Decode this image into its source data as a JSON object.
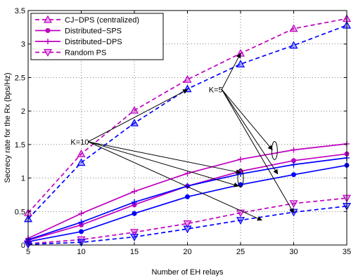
{
  "chart_data": {
    "type": "line",
    "xlabel": "Number of EH relays",
    "ylabel": "Secrecy rate for the Rx (bps/Hz)",
    "xlim": [
      5,
      35
    ],
    "ylim": [
      0,
      3.5
    ],
    "xticks": [
      "5",
      "10",
      "15",
      "20",
      "25",
      "30",
      "35"
    ],
    "yticks": [
      "0",
      "0.5",
      "1",
      "1.5",
      "2",
      "2.5",
      "3",
      "3.5"
    ],
    "grid": "dotted",
    "legend_position": "top-left",
    "legend": [
      {
        "label": "CJ−DPS (centralized)",
        "color": "#bf00bf",
        "dash": "dashed",
        "marker": "triangle-up"
      },
      {
        "label": "Distributed−SPS",
        "color": "#bf00bf",
        "dash": "solid",
        "marker": "circle"
      },
      {
        "label": "Distributed−DPS",
        "color": "#bf00bf",
        "dash": "solid",
        "marker": "plus"
      },
      {
        "label": "Random PS",
        "color": "#bf00bf",
        "dash": "dashed",
        "marker": "triangle-down"
      }
    ],
    "x": [
      5,
      10,
      15,
      20,
      25,
      30,
      35
    ],
    "series": [
      {
        "group": "K=10",
        "style": "CJ-DPS",
        "color": "#bf00bf",
        "dash": "dashed",
        "marker": "triangle-up",
        "values": [
          0.48,
          1.36,
          2.01,
          2.47,
          2.86,
          3.23,
          3.38
        ]
      },
      {
        "group": "K=5",
        "style": "CJ-DPS",
        "color": "#0000ff",
        "dash": "dashed",
        "marker": "triangle-up",
        "values": [
          0.39,
          1.23,
          1.82,
          2.33,
          2.7,
          2.98,
          3.28
        ]
      },
      {
        "group": "K=10",
        "style": "Distributed-DPS",
        "color": "#bf00bf",
        "dash": "solid",
        "marker": "plus",
        "values": [
          0.1,
          0.47,
          0.8,
          1.07,
          1.28,
          1.42,
          1.51
        ]
      },
      {
        "group": "K=10",
        "style": "Distributed-SPS",
        "color": "#bf00bf",
        "dash": "solid",
        "marker": "circle",
        "values": [
          0.07,
          0.3,
          0.6,
          0.88,
          1.1,
          1.26,
          1.36
        ]
      },
      {
        "group": "K=5",
        "style": "Distributed-DPS",
        "color": "#0000ff",
        "dash": "solid",
        "marker": "plus",
        "values": [
          0.08,
          0.34,
          0.64,
          0.88,
          1.06,
          1.2,
          1.3
        ]
      },
      {
        "group": "K=5",
        "style": "Distributed-SPS",
        "color": "#0000ff",
        "dash": "solid",
        "marker": "circle",
        "values": [
          0.05,
          0.2,
          0.47,
          0.72,
          0.9,
          1.05,
          1.19
        ]
      },
      {
        "group": "K=10",
        "style": "Random PS",
        "color": "#bf00bf",
        "dash": "dashed",
        "marker": "triangle-down",
        "values": [
          0.02,
          0.08,
          0.19,
          0.32,
          0.48,
          0.62,
          0.7
        ]
      },
      {
        "group": "K=5",
        "style": "Random PS",
        "color": "#0000ff",
        "dash": "dashed",
        "marker": "triangle-down",
        "values": [
          0.01,
          0.04,
          0.12,
          0.24,
          0.37,
          0.49,
          0.58
        ]
      }
    ],
    "annotations": [
      {
        "text": "K=10",
        "label_at": [
          9,
          1.5
        ],
        "arrows_to": [
          [
            20,
            2.32
          ],
          [
            25,
            1.08
          ],
          [
            24.8,
            0.88
          ],
          [
            27,
            0.37
          ]
        ],
        "ellipse_at": [
          25,
          1.0
        ]
      },
      {
        "text": "K=5",
        "label_at": [
          22,
          2.28
        ],
        "arrows_to": [
          [
            25,
            2.86
          ],
          [
            28,
            1.42
          ],
          [
            28.5,
            1.06
          ],
          [
            30,
            0.48
          ]
        ],
        "ellipse_at": [
          28.2,
          1.41
        ]
      }
    ]
  }
}
